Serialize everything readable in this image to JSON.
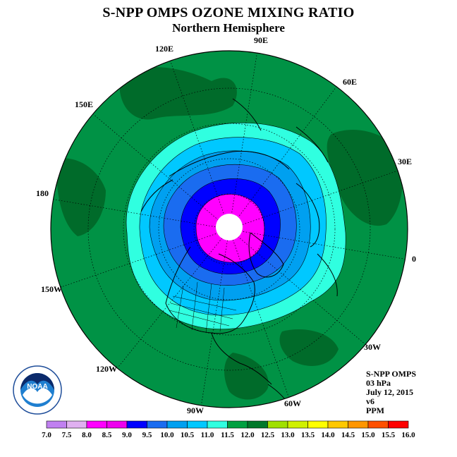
{
  "title": "S-NPP OMPS OZONE MIXING RATIO",
  "subtitle": "Northern Hemisphere",
  "longitude_labels": [
    "90E",
    "60E",
    "30E",
    "0",
    "30W",
    "60W",
    "90W",
    "120W",
    "150W",
    "180",
    "150E",
    "120E"
  ],
  "info": {
    "instrument": "S-NPP OMPS",
    "pressure_level": "03 hPa",
    "date": "July 12, 2015",
    "version": "v6",
    "units": "PPM"
  },
  "logo": {
    "text": "NOAA",
    "ring_text": "NATIONAL OCEANIC AND ATMOSPHERIC ADMINISTRATION · U.S. DEPARTMENT OF COMMERCE"
  },
  "colorbar": {
    "ticks": [
      "7.0",
      "7.5",
      "8.0",
      "8.5",
      "9.0",
      "9.5",
      "10.0",
      "10.5",
      "11.0",
      "11.5",
      "12.0",
      "12.5",
      "13.0",
      "13.5",
      "14.0",
      "14.5",
      "15.0",
      "15.5",
      "16.0"
    ],
    "colors": [
      "#c080f0",
      "#e0b0f0",
      "#ff00ff",
      "#ee00ee",
      "#0000ff",
      "#1a6cf0",
      "#00a0f0",
      "#00c8ff",
      "#30ffe0",
      "#00a040",
      "#00782a",
      "#a0e000",
      "#d0f000",
      "#ffff00",
      "#ffc800",
      "#ff9600",
      "#ff5000",
      "#ff0000",
      "#8b5a3c"
    ]
  },
  "contour_colors": {
    "outer_green": "#009245",
    "dark_green": "#006b2a",
    "cyan": "#30ffe0",
    "sky": "#00c8ff",
    "mid_blue": "#00a0f0",
    "blue": "#1a6cf0",
    "deep_blue": "#0000ff",
    "magenta": "#ff00ff",
    "pole_hole": "#ffffff"
  }
}
